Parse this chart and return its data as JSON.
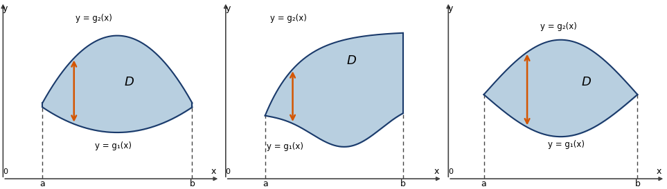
{
  "bg_color": "#ffffff",
  "fill_color": "#b8cfe0",
  "edge_color": "#1a3a6b",
  "arrow_color": "#d45500",
  "dashed_color": "#444444",
  "axis_color": "#444444",
  "text_color": "#000000",
  "label_a": "a",
  "label_b": "b",
  "label_x": "x",
  "label_y": "y",
  "label_D": "D",
  "label_g1": "y = g₁(x)",
  "label_g2": "y = g₂(x)"
}
